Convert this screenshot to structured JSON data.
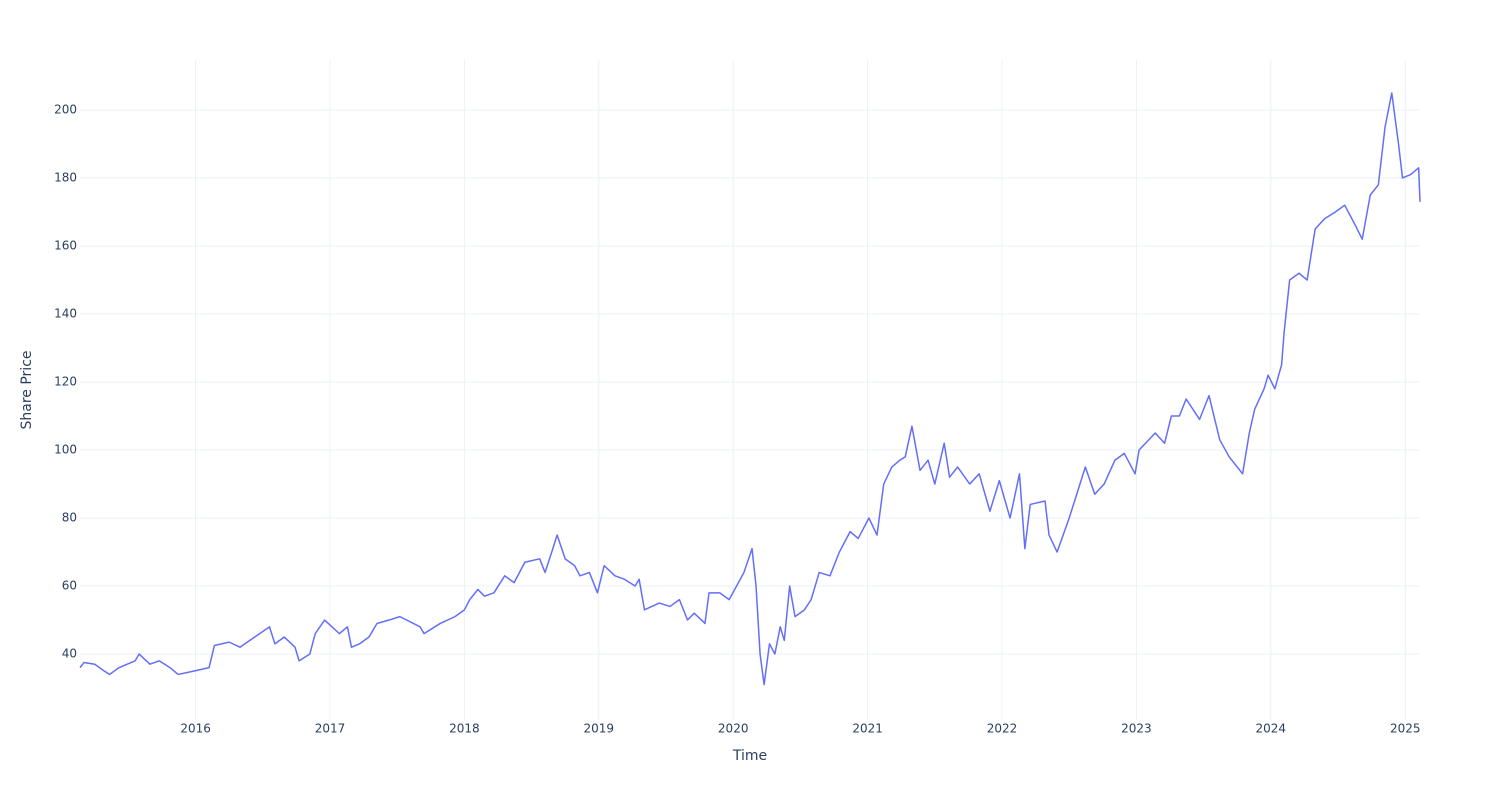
{
  "chart_data": {
    "type": "line",
    "xlabel": "Time",
    "ylabel": "Share Price",
    "xlim": [
      2015.14,
      2025.11
    ],
    "xticks": [
      2016,
      2017,
      2018,
      2019,
      2020,
      2021,
      2022,
      2023,
      2024,
      2025
    ],
    "ylim": [
      20.6,
      214.7
    ],
    "yticks": [
      40,
      60,
      80,
      100,
      120,
      140,
      160,
      180,
      200
    ],
    "grid": true,
    "series": [
      {
        "color": "#636efa",
        "x": [
          2015.14,
          2015.17,
          2015.25,
          2015.32,
          2015.36,
          2015.43,
          2015.55,
          2015.58,
          2015.66,
          2015.73,
          2015.81,
          2015.87,
          2015.99,
          2016.1,
          2016.14,
          2016.25,
          2016.33,
          2016.44,
          2016.55,
          2016.59,
          2016.66,
          2016.74,
          2016.77,
          2016.85,
          2016.89,
          2016.96,
          2017.07,
          2017.13,
          2017.16,
          2017.22,
          2017.29,
          2017.35,
          2017.44,
          2017.52,
          2017.67,
          2017.7,
          2017.82,
          2017.93,
          2018.0,
          2018.04,
          2018.1,
          2018.15,
          2018.22,
          2018.3,
          2018.37,
          2018.45,
          2018.56,
          2018.6,
          2018.65,
          2018.69,
          2018.75,
          2018.82,
          2018.86,
          2018.93,
          2018.99,
          2019.04,
          2019.12,
          2019.19,
          2019.27,
          2019.3,
          2019.34,
          2019.45,
          2019.53,
          2019.6,
          2019.66,
          2019.71,
          2019.79,
          2019.82,
          2019.9,
          2019.97,
          2020.08,
          2020.14,
          2020.17,
          2020.2,
          2020.23,
          2020.27,
          2020.31,
          2020.35,
          2020.38,
          2020.42,
          2020.46,
          2020.53,
          2020.58,
          2020.64,
          2020.72,
          2020.79,
          2020.87,
          2020.93,
          2021.01,
          2021.07,
          2021.12,
          2021.18,
          2021.24,
          2021.28,
          2021.33,
          2021.39,
          2021.45,
          2021.5,
          2021.57,
          2021.61,
          2021.67,
          2021.76,
          2021.83,
          2021.91,
          2021.98,
          2022.06,
          2022.13,
          2022.17,
          2022.21,
          2022.32,
          2022.35,
          2022.41,
          2022.5,
          2022.58,
          2022.62,
          2022.69,
          2022.76,
          2022.84,
          2022.91,
          2022.99,
          2023.02,
          2023.14,
          2023.21,
          2023.26,
          2023.32,
          2023.37,
          2023.47,
          2023.54,
          2023.62,
          2023.69,
          2023.75,
          2023.79,
          2023.84,
          2023.88,
          2023.95,
          2023.98,
          2024.03,
          2024.08,
          2024.1,
          2024.14,
          2024.21,
          2024.27,
          2024.33,
          2024.4,
          2024.48,
          2024.55,
          2024.63,
          2024.68,
          2024.74,
          2024.8,
          2024.85,
          2024.9,
          2024.95,
          2024.98,
          2025.04,
          2025.1,
          2025.11
        ],
        "values": [
          36,
          37.5,
          37,
          35,
          34,
          36,
          38,
          40,
          37,
          38,
          36,
          34,
          35,
          36,
          42.5,
          43.5,
          42,
          45,
          48,
          43,
          45,
          42,
          38,
          40,
          46,
          50,
          46,
          48,
          42,
          43,
          45,
          49,
          50,
          51,
          48,
          46,
          49,
          51,
          53,
          56,
          59,
          57,
          58,
          63,
          61,
          67,
          68,
          64,
          70,
          75,
          68,
          66,
          63,
          64,
          58,
          66,
          63,
          62,
          60,
          62,
          53,
          55,
          54,
          56,
          50,
          52,
          49,
          58,
          58,
          56,
          64,
          71,
          60,
          40,
          31,
          43,
          40,
          48,
          44,
          60,
          51,
          53,
          56,
          64,
          63,
          70,
          76,
          74,
          80,
          75,
          90,
          95,
          97,
          98,
          107,
          94,
          97,
          90,
          102,
          92,
          95,
          90,
          93,
          82,
          91,
          80,
          93,
          71,
          84,
          85,
          75,
          70,
          80,
          90,
          95,
          87,
          90,
          97,
          99,
          93,
          100,
          105,
          102,
          110,
          110,
          115,
          109,
          116,
          103,
          98,
          95,
          93,
          105,
          112,
          118,
          122,
          118,
          125,
          135,
          150,
          152,
          150,
          165,
          168,
          170,
          172,
          166,
          162,
          175,
          178,
          195,
          205,
          190,
          180,
          181,
          183,
          173
        ]
      }
    ]
  }
}
